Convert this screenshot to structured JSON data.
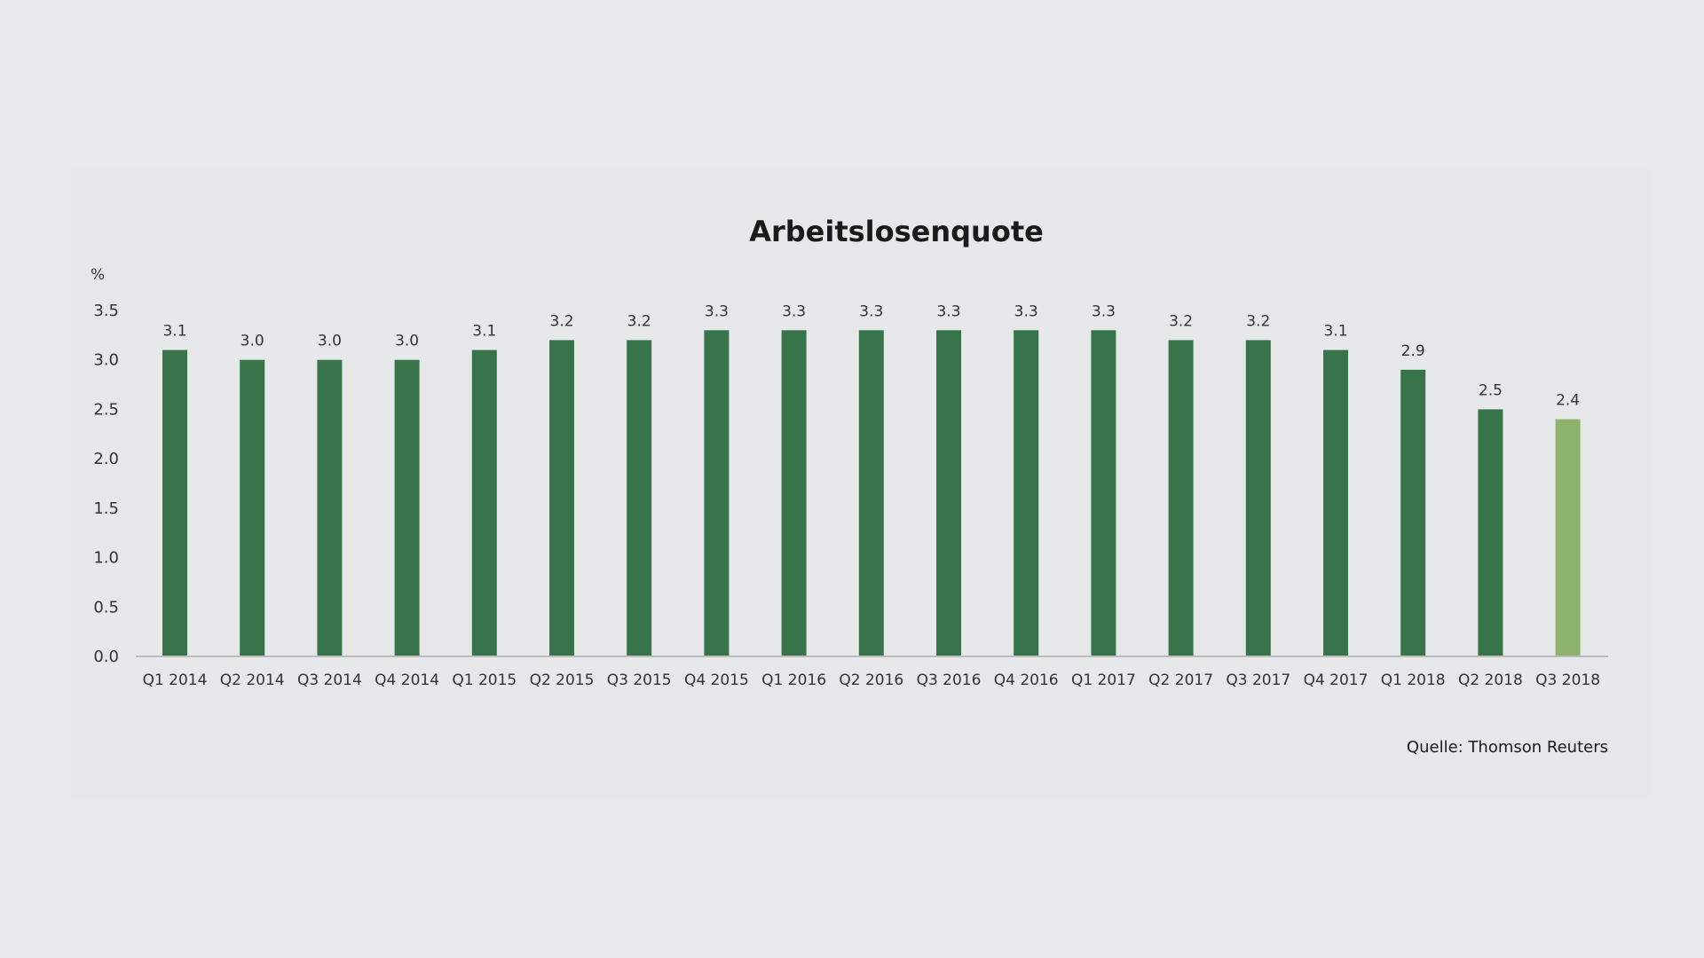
{
  "chart_data": {
    "type": "bar",
    "title": "Arbeitslosenquote",
    "unit_label": "%",
    "source": "Quelle: Thomson Reuters",
    "categories": [
      "Q1 2014",
      "Q2 2014",
      "Q3 2014",
      "Q4 2014",
      "Q1 2015",
      "Q2 2015",
      "Q3 2015",
      "Q4 2015",
      "Q1 2016",
      "Q2 2016",
      "Q3 2016",
      "Q4 2016",
      "Q1 2017",
      "Q2 2017",
      "Q3 2017",
      "Q4 2017",
      "Q1 2018",
      "Q2 2018",
      "Q3 2018"
    ],
    "values": [
      3.1,
      3.0,
      3.0,
      3.0,
      3.1,
      3.2,
      3.2,
      3.3,
      3.3,
      3.3,
      3.3,
      3.3,
      3.3,
      3.2,
      3.2,
      3.1,
      2.9,
      2.5,
      2.4
    ],
    "value_labels": [
      "3.1",
      "3.0",
      "3.0",
      "3.0",
      "3.1",
      "3.2",
      "3.2",
      "3.3",
      "3.3",
      "3.3",
      "3.3",
      "3.3",
      "3.3",
      "3.2",
      "3.2",
      "3.1",
      "2.9",
      "2.5",
      "2.4"
    ],
    "ylim": [
      0,
      3.5
    ],
    "yticks": [
      "0.0",
      "0.5",
      "1.0",
      "1.5",
      "2.0",
      "2.5",
      "3.0",
      "3.5"
    ],
    "grid": false,
    "legend": "none",
    "colors": {
      "bar": "#38744a",
      "highlight_bar": "#8db36c",
      "axis": "#bcbcbc"
    },
    "highlight_index": 18
  }
}
